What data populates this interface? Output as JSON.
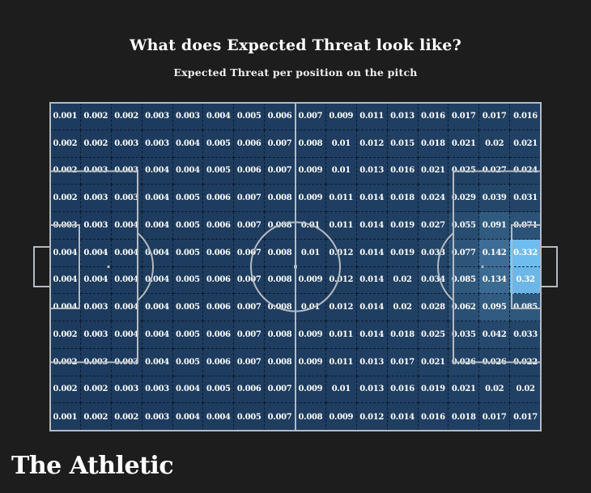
{
  "header": {
    "title": "What does Expected Threat look like?",
    "subtitle": "Expected Threat per position on the pitch"
  },
  "footer": {
    "brand": "The Athletic"
  },
  "colors": {
    "background": "#1d1d1d",
    "cell_low": "#1d3b5d",
    "cell_high": "#6fbcee",
    "pitch_line": "#b4bac1",
    "cell_border": "#071628",
    "value_text": "#ffffff"
  },
  "chart_data": {
    "type": "heatmap",
    "title": "What does Expected Threat look like?",
    "subtitle": "Expected Threat per position on the pitch",
    "description": "Expected Threat (xT) value per pitch zone on a football pitch, 16 columns x 12 rows, attacking left to right",
    "rows": 12,
    "cols": 16,
    "min": 0.001,
    "max": 0.332,
    "values": [
      [
        0.001,
        0.002,
        0.002,
        0.003,
        0.003,
        0.004,
        0.005,
        0.006,
        0.007,
        0.009,
        0.011,
        0.013,
        0.016,
        0.017,
        0.017,
        0.016
      ],
      [
        0.002,
        0.002,
        0.003,
        0.003,
        0.004,
        0.005,
        0.006,
        0.007,
        0.008,
        0.01,
        0.012,
        0.015,
        0.018,
        0.021,
        0.02,
        0.021
      ],
      [
        0.002,
        0.003,
        0.003,
        0.004,
        0.004,
        0.005,
        0.006,
        0.007,
        0.009,
        0.01,
        0.013,
        0.016,
        0.021,
        0.025,
        0.027,
        0.024
      ],
      [
        0.002,
        0.003,
        0.003,
        0.004,
        0.005,
        0.006,
        0.007,
        0.008,
        0.009,
        0.011,
        0.014,
        0.018,
        0.024,
        0.029,
        0.039,
        0.031
      ],
      [
        0.003,
        0.003,
        0.004,
        0.004,
        0.005,
        0.006,
        0.007,
        0.008,
        0.01,
        0.011,
        0.014,
        0.019,
        0.027,
        0.055,
        0.091,
        0.071
      ],
      [
        0.004,
        0.004,
        0.004,
        0.004,
        0.005,
        0.006,
        0.007,
        0.008,
        0.01,
        0.012,
        0.014,
        0.019,
        0.033,
        0.077,
        0.142,
        0.332
      ],
      [
        0.004,
        0.004,
        0.004,
        0.004,
        0.005,
        0.006,
        0.007,
        0.008,
        0.009,
        0.012,
        0.014,
        0.02,
        0.034,
        0.085,
        0.134,
        0.32
      ],
      [
        0.004,
        0.003,
        0.004,
        0.004,
        0.005,
        0.006,
        0.007,
        0.008,
        0.01,
        0.012,
        0.014,
        0.02,
        0.028,
        0.062,
        0.095,
        0.085
      ],
      [
        0.002,
        0.003,
        0.004,
        0.004,
        0.005,
        0.006,
        0.007,
        0.008,
        0.009,
        0.011,
        0.014,
        0.018,
        0.025,
        0.035,
        0.042,
        0.033
      ],
      [
        0.002,
        0.003,
        0.003,
        0.004,
        0.005,
        0.006,
        0.007,
        0.008,
        0.009,
        0.011,
        0.013,
        0.017,
        0.021,
        0.026,
        0.026,
        0.022
      ],
      [
        0.002,
        0.002,
        0.003,
        0.003,
        0.004,
        0.005,
        0.006,
        0.007,
        0.009,
        0.01,
        0.013,
        0.016,
        0.019,
        0.021,
        0.02,
        0.02
      ],
      [
        0.001,
        0.002,
        0.002,
        0.003,
        0.004,
        0.004,
        0.005,
        0.007,
        0.008,
        0.009,
        0.012,
        0.014,
        0.016,
        0.018,
        0.017,
        0.017
      ]
    ]
  }
}
